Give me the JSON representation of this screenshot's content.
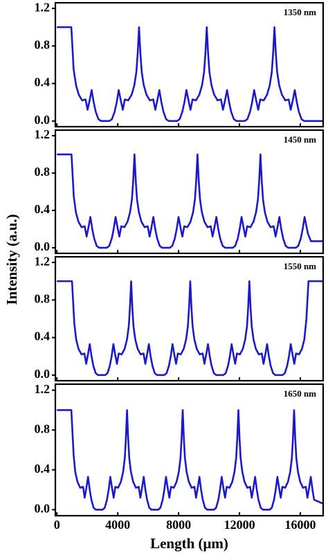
{
  "ylabel": "Intensity (a.u.)",
  "chart_data": [
    {
      "type": "line",
      "annotation": "1350 nm",
      "xlim": [
        -100,
        17500
      ],
      "ylim": [
        -0.06,
        1.26
      ],
      "yticks": [
        {
          "value": 0,
          "label": "0.0"
        },
        0.4,
        0.8,
        1.2
      ],
      "x": [
        0,
        950,
        1100,
        1262,
        1440,
        1662,
        1885,
        2018,
        2152,
        2285,
        2419,
        2552,
        2730,
        2908,
        3442,
        3620,
        3798,
        3932,
        4065,
        4199,
        4332,
        4466,
        4688,
        4911,
        5089,
        5222,
        5311,
        5400,
        5489,
        5578,
        5712,
        5890,
        6112,
        6335,
        6468,
        6602,
        6735,
        6869,
        7002,
        7180,
        7358,
        7892,
        8070,
        8248,
        8382,
        8515,
        8649,
        8782,
        8916,
        9138,
        9361,
        9539,
        9672,
        9761,
        9850,
        9939,
        10028,
        10162,
        10340,
        10562,
        10785,
        10918,
        11052,
        11185,
        11319,
        11452,
        11630,
        11808,
        12342,
        12520,
        12698,
        12832,
        12965,
        13099,
        13232,
        13366,
        13588,
        13811,
        13989,
        14122,
        14211,
        14300,
        14389,
        14478,
        14612,
        14790,
        15012,
        15235,
        15368,
        15502,
        15635,
        15769,
        15902,
        16080,
        16258,
        17500
      ],
      "series": [
        {
          "color": "#1a1ac8",
          "values": [
            1,
            1,
            0.55,
            0.38,
            0.28,
            0.22,
            0.23,
            0.12,
            0.22,
            0.33,
            0.2,
            0.1,
            0.02,
            0,
            0,
            0.02,
            0.1,
            0.2,
            0.33,
            0.22,
            0.12,
            0.23,
            0.22,
            0.28,
            0.38,
            0.52,
            0.72,
            1,
            0.72,
            0.52,
            0.38,
            0.28,
            0.22,
            0.23,
            0.12,
            0.22,
            0.33,
            0.2,
            0.1,
            0.02,
            0,
            0,
            0.02,
            0.1,
            0.2,
            0.33,
            0.22,
            0.12,
            0.23,
            0.22,
            0.28,
            0.38,
            0.52,
            0.72,
            1,
            0.72,
            0.52,
            0.38,
            0.28,
            0.22,
            0.23,
            0.12,
            0.22,
            0.33,
            0.2,
            0.1,
            0.02,
            0,
            0,
            0.02,
            0.1,
            0.2,
            0.33,
            0.22,
            0.12,
            0.23,
            0.22,
            0.28,
            0.38,
            0.52,
            0.72,
            1,
            0.72,
            0.52,
            0.38,
            0.28,
            0.22,
            0.23,
            0.12,
            0.22,
            0.33,
            0.2,
            0.1,
            0.02,
            0,
            0
          ]
        }
      ]
    },
    {
      "type": "line",
      "annotation": "1450 nm",
      "xlim": [
        -100,
        17500
      ],
      "ylim": [
        -0.06,
        1.26
      ],
      "yticks": [
        {
          "value": 0,
          "label": "0.0"
        },
        0.4,
        0.8,
        1.2
      ],
      "x": [
        0,
        960,
        1110,
        1250,
        1415,
        1622,
        1829,
        1954,
        2078,
        2202,
        2326,
        2450,
        2616,
        2782,
        3278,
        3444,
        3610,
        3734,
        3858,
        3982,
        4106,
        4231,
        4438,
        4645,
        4810,
        4934,
        5017,
        5100,
        5183,
        5266,
        5390,
        5555,
        5762,
        5969,
        6094,
        6218,
        6342,
        6466,
        6590,
        6756,
        6922,
        7418,
        7584,
        7750,
        7874,
        7998,
        8122,
        8246,
        8371,
        8578,
        8785,
        8950,
        9074,
        9157,
        9240,
        9323,
        9406,
        9530,
        9695,
        9902,
        10109,
        10234,
        10358,
        10482,
        10606,
        10730,
        10896,
        11062,
        11558,
        11724,
        11890,
        12014,
        12138,
        12262,
        12386,
        12511,
        12718,
        12925,
        13090,
        13214,
        13297,
        13380,
        13463,
        13546,
        13670,
        13835,
        14042,
        14249,
        14374,
        14498,
        14622,
        14746,
        14870,
        15036,
        15202,
        15698,
        15864,
        16030,
        16154,
        16278,
        16500,
        16700,
        17500
      ],
      "series": [
        {
          "color": "#1a1ac8",
          "values": [
            1,
            1,
            0.55,
            0.38,
            0.28,
            0.22,
            0.23,
            0.12,
            0.22,
            0.33,
            0.2,
            0.1,
            0.02,
            0,
            0,
            0.02,
            0.1,
            0.2,
            0.33,
            0.22,
            0.12,
            0.23,
            0.22,
            0.28,
            0.38,
            0.52,
            0.72,
            1,
            0.72,
            0.52,
            0.38,
            0.28,
            0.22,
            0.23,
            0.12,
            0.22,
            0.33,
            0.2,
            0.1,
            0.02,
            0,
            0,
            0.02,
            0.1,
            0.2,
            0.33,
            0.22,
            0.12,
            0.23,
            0.22,
            0.28,
            0.38,
            0.52,
            0.72,
            1,
            0.72,
            0.52,
            0.38,
            0.28,
            0.22,
            0.23,
            0.12,
            0.22,
            0.33,
            0.2,
            0.1,
            0.02,
            0,
            0,
            0.02,
            0.1,
            0.2,
            0.33,
            0.22,
            0.12,
            0.23,
            0.22,
            0.28,
            0.38,
            0.52,
            0.72,
            1,
            0.72,
            0.52,
            0.38,
            0.28,
            0.22,
            0.23,
            0.12,
            0.22,
            0.33,
            0.2,
            0.1,
            0.02,
            0,
            0,
            0.02,
            0.1,
            0.2,
            0.33,
            0.15,
            0.07,
            0.07
          ]
        }
      ]
    },
    {
      "type": "line",
      "annotation": "1550 nm",
      "xlim": [
        -100,
        17500
      ],
      "ylim": [
        -0.06,
        1.26
      ],
      "yticks": [
        {
          "value": 0,
          "label": "0.0"
        },
        0.4,
        0.8,
        1.2
      ],
      "x": [
        0,
        995,
        1145,
        1267,
        1422,
        1617,
        1811,
        1927,
        2044,
        2161,
        2277,
        2394,
        2549,
        2704,
        3171,
        3326,
        3481,
        3598,
        3715,
        3831,
        3948,
        4064,
        4258,
        4453,
        4608,
        4725,
        4802,
        4880,
        4958,
        5035,
        5152,
        5307,
        5502,
        5696,
        5812,
        5929,
        6046,
        6162,
        6279,
        6434,
        6589,
        7056,
        7211,
        7366,
        7483,
        7600,
        7716,
        7833,
        7949,
        8143,
        8338,
        8493,
        8610,
        8687,
        8765,
        8843,
        8920,
        9037,
        9192,
        9387,
        9581,
        9697,
        9814,
        9931,
        10047,
        10164,
        10319,
        10474,
        10941,
        11096,
        11251,
        11368,
        11485,
        11601,
        11718,
        11834,
        12028,
        12223,
        12378,
        12495,
        12572,
        12650,
        12728,
        12805,
        12922,
        13077,
        13272,
        13466,
        13582,
        13699,
        13816,
        13932,
        14049,
        14204,
        14359,
        14826,
        14981,
        15136,
        15253,
        15370,
        15486,
        15603,
        15719,
        15913,
        16108,
        16263,
        16400,
        16535,
        17500
      ],
      "series": [
        {
          "color": "#1a1ac8",
          "values": [
            1,
            1,
            0.55,
            0.38,
            0.28,
            0.22,
            0.23,
            0.12,
            0.22,
            0.33,
            0.2,
            0.1,
            0.02,
            0,
            0,
            0.02,
            0.1,
            0.2,
            0.33,
            0.22,
            0.12,
            0.23,
            0.22,
            0.28,
            0.38,
            0.52,
            0.72,
            1,
            0.72,
            0.52,
            0.38,
            0.28,
            0.22,
            0.23,
            0.12,
            0.22,
            0.33,
            0.2,
            0.1,
            0.02,
            0,
            0,
            0.02,
            0.1,
            0.2,
            0.33,
            0.22,
            0.12,
            0.23,
            0.22,
            0.28,
            0.38,
            0.52,
            0.72,
            1,
            0.72,
            0.52,
            0.38,
            0.28,
            0.22,
            0.23,
            0.12,
            0.22,
            0.33,
            0.2,
            0.1,
            0.02,
            0,
            0,
            0.02,
            0.1,
            0.2,
            0.33,
            0.22,
            0.12,
            0.23,
            0.22,
            0.28,
            0.38,
            0.52,
            0.72,
            1,
            0.72,
            0.52,
            0.38,
            0.28,
            0.22,
            0.23,
            0.12,
            0.22,
            0.33,
            0.2,
            0.1,
            0.02,
            0,
            0,
            0.02,
            0.1,
            0.2,
            0.33,
            0.22,
            0.12,
            0.23,
            0.22,
            0.28,
            0.38,
            0.6,
            1,
            1
          ]
        }
      ]
    },
    {
      "type": "line",
      "annotation": "1650 nm",
      "xlim": [
        -100,
        17500
      ],
      "ylim": [
        -0.06,
        1.26
      ],
      "yticks": [
        {
          "value": 0,
          "label": "0.0"
        },
        0.4,
        0.8,
        1.2
      ],
      "xticks": [
        0,
        4000,
        8000,
        12000,
        16000
      ],
      "xlabel": "Length (μm)",
      "x": [
        0,
        950,
        1100,
        1206,
        1353,
        1536,
        1719,
        1828,
        1938,
        2048,
        2158,
        2268,
        2414,
        2560,
        3000,
        3146,
        3292,
        3402,
        3512,
        3622,
        3732,
        3841,
        4024,
        4207,
        4354,
        4464,
        4537,
        4610,
        4683,
        4756,
        4866,
        5013,
        5196,
        5379,
        5488,
        5598,
        5708,
        5818,
        5928,
        6074,
        6220,
        6660,
        6806,
        6952,
        7062,
        7172,
        7282,
        7392,
        7501,
        7684,
        7867,
        8014,
        8124,
        8197,
        8270,
        8343,
        8416,
        8526,
        8673,
        8856,
        9039,
        9148,
        9258,
        9368,
        9478,
        9588,
        9734,
        9880,
        10320,
        10466,
        10612,
        10722,
        10832,
        10942,
        11052,
        11161,
        11344,
        11527,
        11674,
        11784,
        11857,
        11930,
        12003,
        12076,
        12186,
        12333,
        12516,
        12699,
        12808,
        12918,
        13028,
        13138,
        13248,
        13394,
        13540,
        13980,
        14126,
        14272,
        14382,
        14492,
        14602,
        14712,
        14821,
        15004,
        15187,
        15334,
        15444,
        15517,
        15590,
        15663,
        15736,
        15846,
        15993,
        16176,
        16359,
        16468,
        16578,
        16688,
        16798,
        16908,
        17500
      ],
      "series": [
        {
          "color": "#1a1ac8",
          "values": [
            1,
            1,
            0.55,
            0.38,
            0.28,
            0.22,
            0.23,
            0.12,
            0.22,
            0.33,
            0.2,
            0.1,
            0.02,
            0,
            0,
            0.02,
            0.1,
            0.2,
            0.33,
            0.22,
            0.12,
            0.23,
            0.22,
            0.28,
            0.38,
            0.52,
            0.72,
            1,
            0.72,
            0.52,
            0.38,
            0.28,
            0.22,
            0.23,
            0.12,
            0.22,
            0.33,
            0.2,
            0.1,
            0.02,
            0,
            0,
            0.02,
            0.1,
            0.2,
            0.33,
            0.22,
            0.12,
            0.23,
            0.22,
            0.28,
            0.38,
            0.52,
            0.72,
            1,
            0.72,
            0.52,
            0.38,
            0.28,
            0.22,
            0.23,
            0.12,
            0.22,
            0.33,
            0.2,
            0.1,
            0.02,
            0,
            0,
            0.02,
            0.1,
            0.2,
            0.33,
            0.22,
            0.12,
            0.23,
            0.22,
            0.28,
            0.38,
            0.52,
            0.72,
            1,
            0.72,
            0.52,
            0.38,
            0.28,
            0.22,
            0.23,
            0.12,
            0.22,
            0.33,
            0.2,
            0.1,
            0.02,
            0,
            0,
            0.02,
            0.1,
            0.2,
            0.33,
            0.22,
            0.12,
            0.23,
            0.22,
            0.28,
            0.38,
            0.52,
            0.72,
            1,
            0.72,
            0.52,
            0.38,
            0.28,
            0.22,
            0.23,
            0.12,
            0.22,
            0.33,
            0.2,
            0.1,
            0.06
          ]
        }
      ]
    }
  ]
}
